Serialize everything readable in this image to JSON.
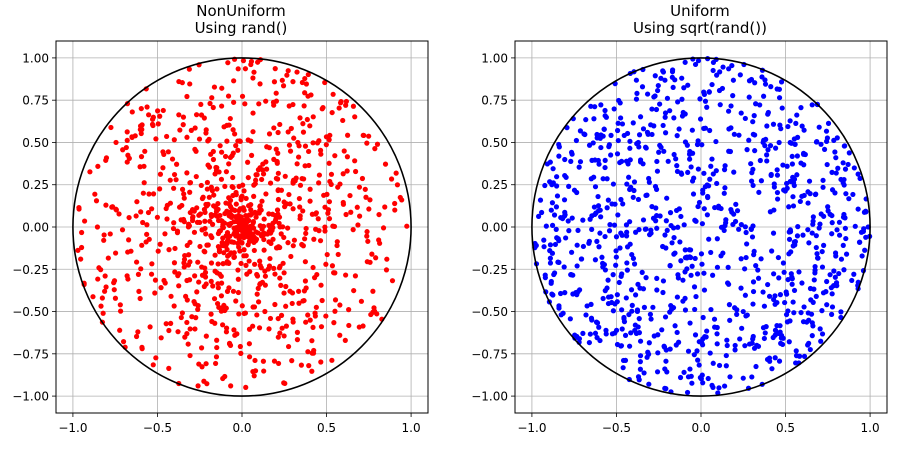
{
  "chart_data": [
    {
      "type": "scatter",
      "title_line1": "NonUniform",
      "title_line2": "Using rand()",
      "xlim": [
        -1.1,
        1.1
      ],
      "ylim": [
        -1.1,
        1.1
      ],
      "xticks": [
        -1.0,
        -0.5,
        0.0,
        0.5,
        1.0
      ],
      "xtick_labels": [
        "−1.0",
        "−0.5",
        "0.0",
        "0.5",
        "1.0"
      ],
      "yticks": [
        1.0,
        0.75,
        0.5,
        0.25,
        0.0,
        -0.25,
        -0.5,
        -0.75,
        -1.0
      ],
      "ytick_labels": [
        "1.00",
        "0.75",
        "0.50",
        "0.25",
        "0.00",
        "−0.25",
        "−0.50",
        "−0.75",
        "−1.00"
      ],
      "grid": true,
      "circle": {
        "center": [
          0,
          0
        ],
        "radius": 1.0,
        "color": "#000000"
      },
      "points": {
        "n": 1000,
        "radius_method": "r = rand()",
        "angle_method": "theta = 2*pi*rand()",
        "seed": 7,
        "color": "#ff0000"
      }
    },
    {
      "type": "scatter",
      "title_line1": "Uniform",
      "title_line2": "Using sqrt(rand())",
      "xlim": [
        -1.1,
        1.1
      ],
      "ylim": [
        -1.1,
        1.1
      ],
      "xticks": [
        -1.0,
        -0.5,
        0.0,
        0.5,
        1.0
      ],
      "xtick_labels": [
        "−1.0",
        "−0.5",
        "0.0",
        "0.5",
        "1.0"
      ],
      "yticks": [
        1.0,
        0.75,
        0.5,
        0.25,
        0.0,
        -0.25,
        -0.5,
        -0.75,
        -1.0
      ],
      "ytick_labels": [
        "1.00",
        "0.75",
        "0.50",
        "0.25",
        "0.00",
        "−0.25",
        "−0.50",
        "−0.75",
        "−1.00"
      ],
      "grid": true,
      "circle": {
        "center": [
          0,
          0
        ],
        "radius": 1.0,
        "color": "#000000"
      },
      "points": {
        "n": 1000,
        "radius_method": "r = sqrt(rand())",
        "angle_method": "theta = 2*pi*rand()",
        "seed": 11,
        "color": "#0000ff"
      }
    }
  ]
}
